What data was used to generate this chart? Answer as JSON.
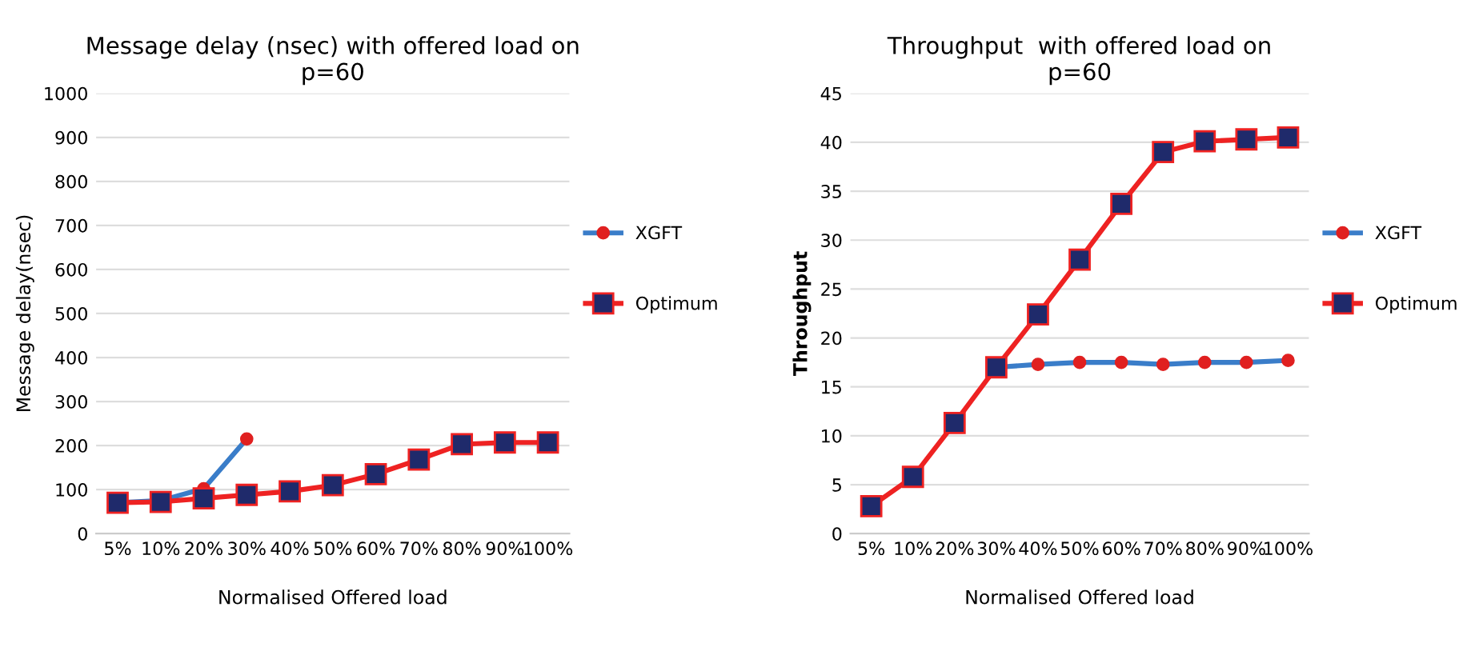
{
  "chart_data": [
    {
      "type": "line",
      "title": "Message delay (nsec) with offered load on\np=60",
      "xlabel": "Normalised Offered load",
      "ylabel": "Message delay(nsec)",
      "categories": [
        "5%",
        "10%",
        "20%",
        "30%",
        "40%",
        "50%",
        "60%",
        "70%",
        "80%",
        "90%",
        "100%"
      ],
      "ylim": [
        0,
        1000
      ],
      "yticks": [
        0,
        100,
        200,
        300,
        400,
        500,
        600,
        700,
        800,
        900,
        1000
      ],
      "grid": "y",
      "legend": "right",
      "series": [
        {
          "name": "XGFT",
          "color": "#3a7dc9",
          "marker": "circle",
          "values": [
            70,
            75,
            102,
            215,
            null,
            null,
            null,
            null,
            null,
            null,
            null
          ]
        },
        {
          "name": "Optimum",
          "color": "#ee2222",
          "marker": "square",
          "values": [
            70,
            72,
            80,
            88,
            96,
            110,
            135,
            168,
            203,
            207,
            207
          ]
        }
      ]
    },
    {
      "type": "line",
      "title": "Throughput  with offered load on\np=60",
      "xlabel": "Normalised Offered load",
      "ylabel": "Throughput",
      "categories": [
        "5%",
        "10%",
        "20%",
        "30%",
        "40%",
        "50%",
        "60%",
        "70%",
        "80%",
        "90%",
        "100%"
      ],
      "ylim": [
        0,
        45
      ],
      "yticks": [
        0,
        5,
        10,
        15,
        20,
        25,
        30,
        35,
        40,
        45
      ],
      "grid": "y",
      "legend": "right",
      "series": [
        {
          "name": "XGFT",
          "color": "#3a7dc9",
          "marker": "circle",
          "values": [
            null,
            null,
            null,
            17,
            17.3,
            17.5,
            17.5,
            17.3,
            17.5,
            17.5,
            17.7
          ]
        },
        {
          "name": "Optimum",
          "color": "#ee2222",
          "marker": "square",
          "values": [
            2.8,
            5.8,
            11.3,
            17,
            22.4,
            28,
            33.7,
            39,
            40.1,
            40.3,
            40.5
          ]
        }
      ]
    }
  ]
}
